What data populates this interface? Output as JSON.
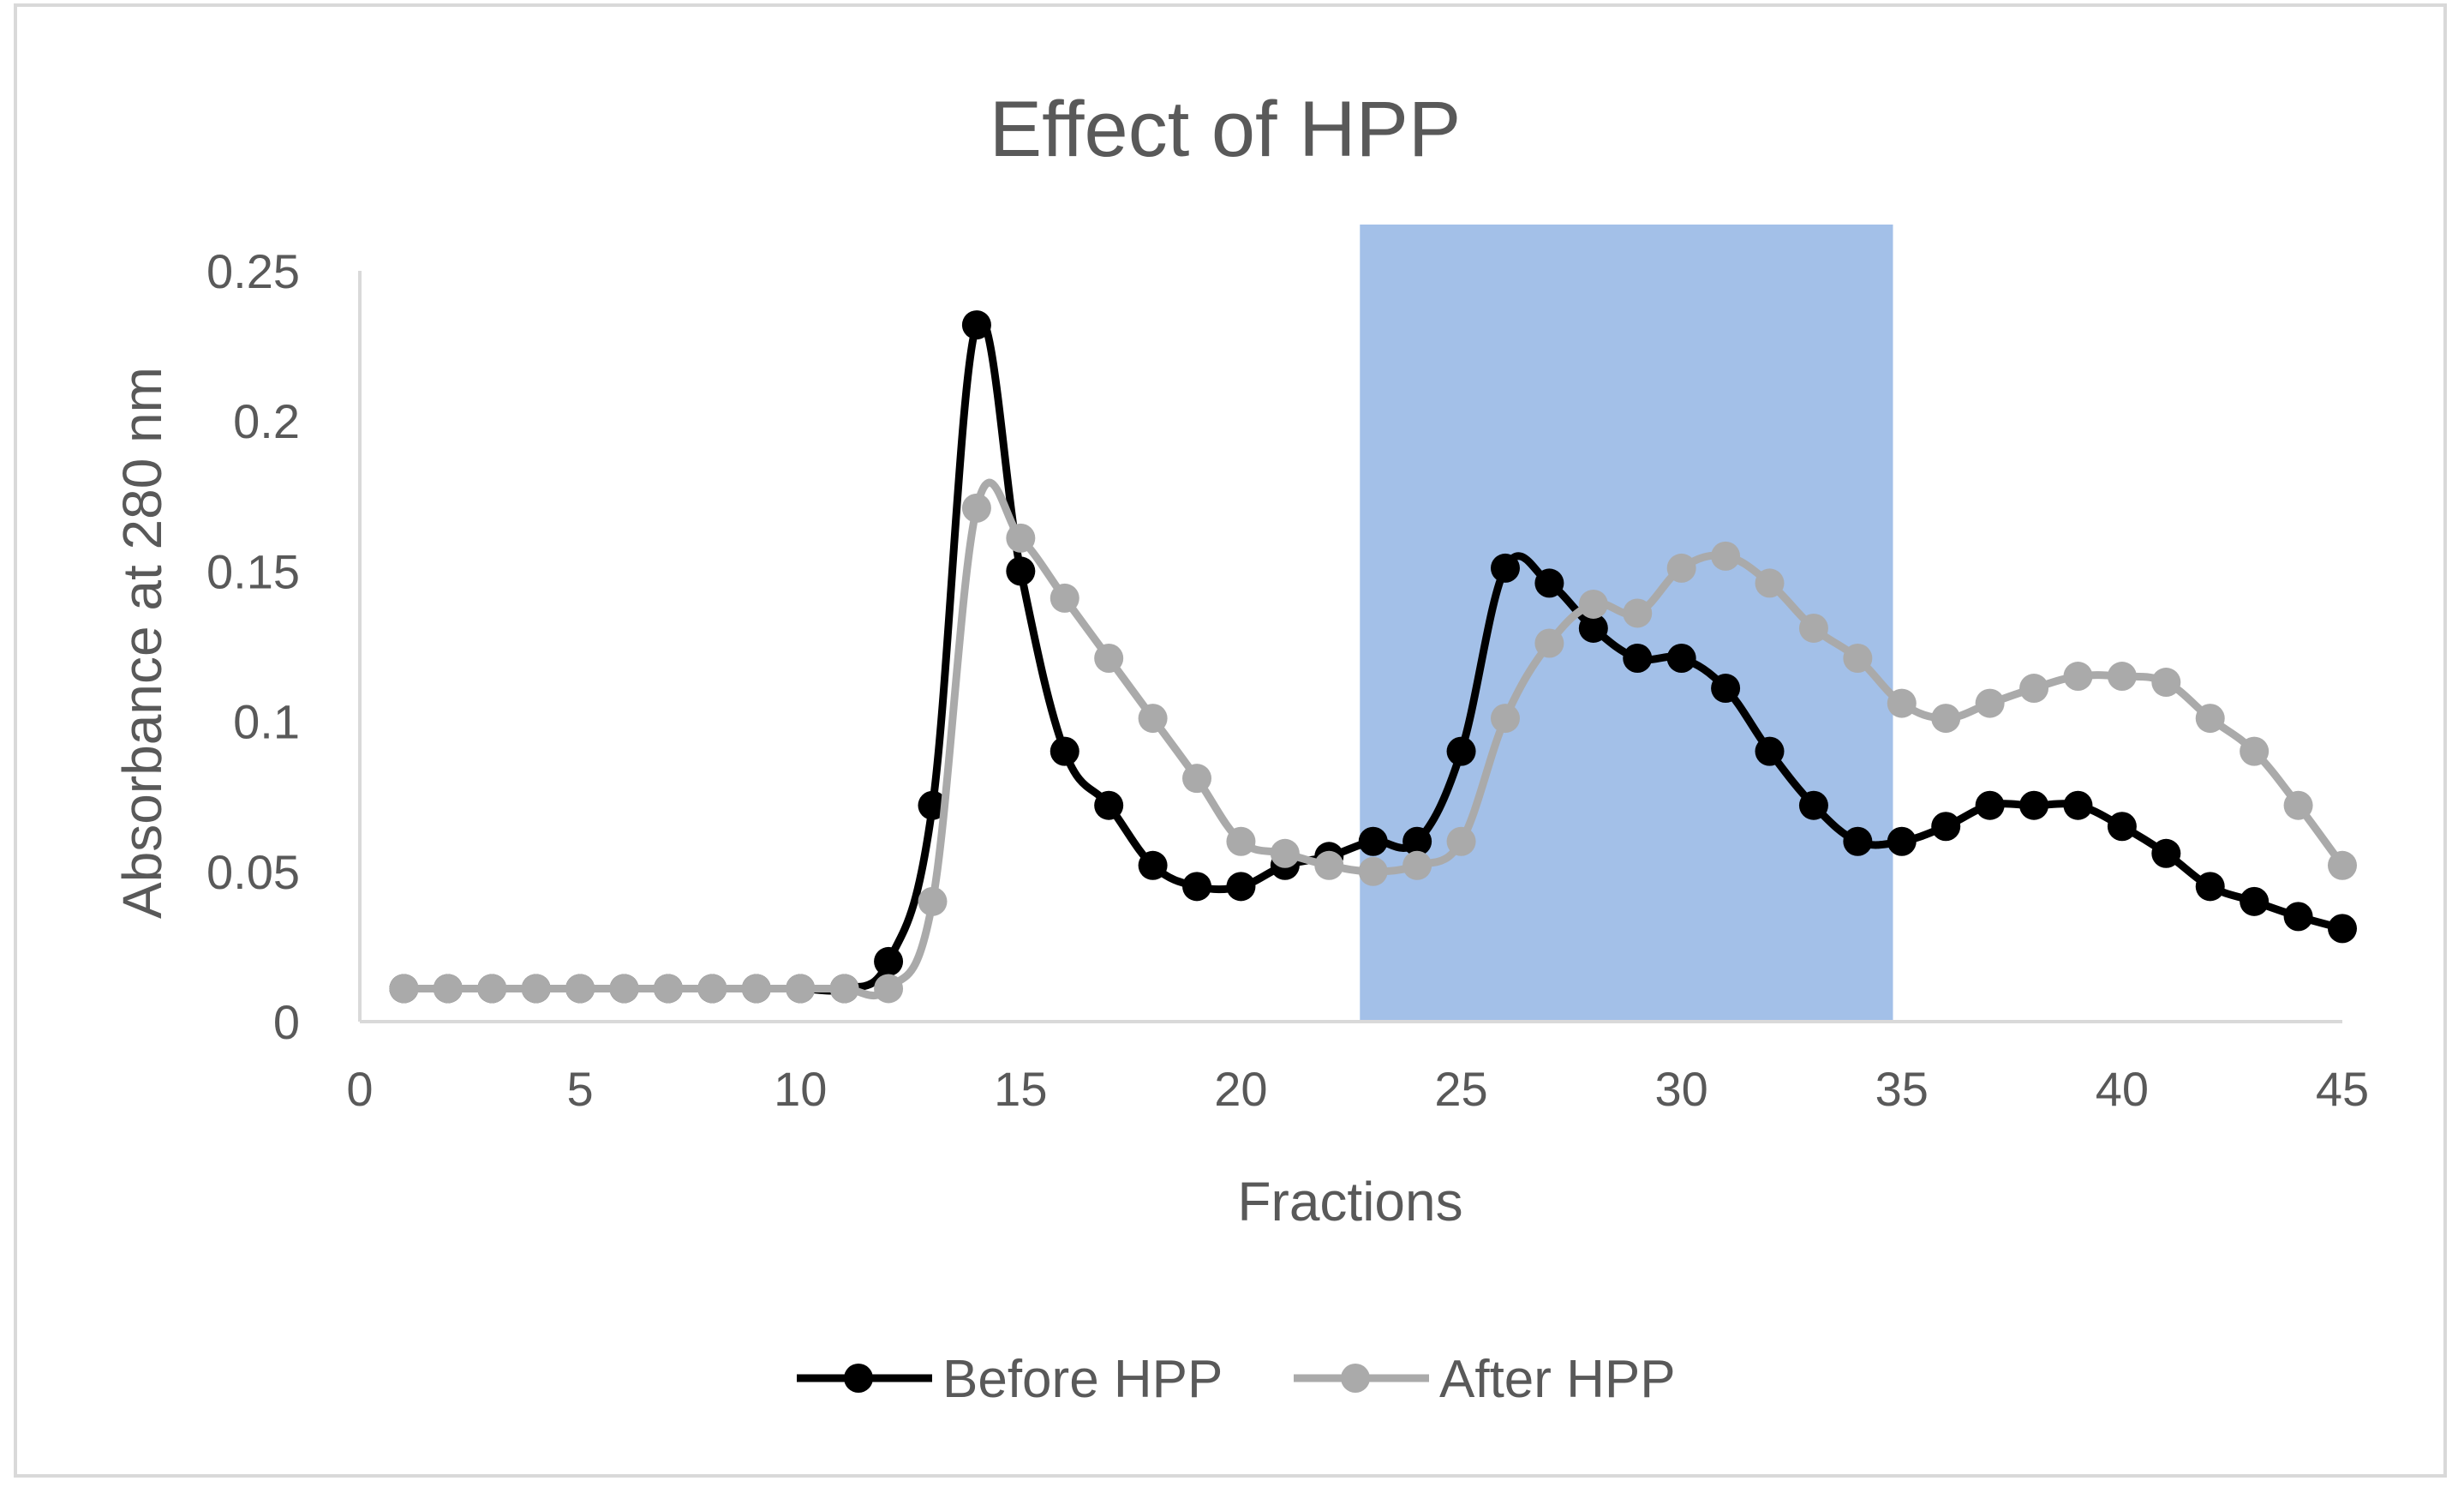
{
  "chart_data": {
    "type": "line",
    "title": "Effect of HPP",
    "xlabel": "Fractions",
    "ylabel": "Absorbance at 280 nm",
    "xlim": [
      0,
      45
    ],
    "ylim": [
      0,
      0.25
    ],
    "x_ticks": [
      "0",
      "5",
      "10",
      "15",
      "20",
      "25",
      "30",
      "35",
      "40",
      "45"
    ],
    "y_ticks": [
      "0",
      "0.05",
      "0.1",
      "0.15",
      "0.2",
      "0.25"
    ],
    "grid": false,
    "legend_position": "bottom-center",
    "highlight_region": {
      "x_start": 22.7,
      "x_end": 34.8,
      "color": "#8fb2e3"
    },
    "x": [
      1,
      2,
      3,
      4,
      5,
      6,
      7,
      8,
      9,
      10,
      11,
      12,
      13,
      14,
      15,
      16,
      17,
      18,
      19,
      20,
      21,
      22,
      23,
      24,
      25,
      26,
      27,
      28,
      29,
      30,
      31,
      32,
      33,
      34,
      35,
      36,
      37,
      38,
      39,
      40,
      41,
      42,
      43,
      44,
      45
    ],
    "series": [
      {
        "name": "Before HPP",
        "color": "#000000",
        "values": [
          0.011,
          0.011,
          0.011,
          0.011,
          0.011,
          0.011,
          0.011,
          0.011,
          0.011,
          0.011,
          0.011,
          0.02,
          0.072,
          0.232,
          0.15,
          0.09,
          0.072,
          0.052,
          0.045,
          0.045,
          0.052,
          0.055,
          0.06,
          0.06,
          0.09,
          0.151,
          0.146,
          0.131,
          0.121,
          0.121,
          0.111,
          0.09,
          0.072,
          0.06,
          0.06,
          0.065,
          0.072,
          0.072,
          0.072,
          0.065,
          0.056,
          0.045,
          0.04,
          0.035,
          0.031
        ]
      },
      {
        "name": "After HPP",
        "color": "#aaaaaa",
        "values": [
          0.011,
          0.011,
          0.011,
          0.011,
          0.011,
          0.011,
          0.011,
          0.011,
          0.011,
          0.011,
          0.011,
          0.011,
          0.04,
          0.171,
          0.161,
          0.141,
          0.121,
          0.101,
          0.081,
          0.06,
          0.056,
          0.052,
          0.05,
          0.052,
          0.06,
          0.101,
          0.126,
          0.139,
          0.136,
          0.151,
          0.155,
          0.146,
          0.131,
          0.121,
          0.106,
          0.101,
          0.106,
          0.111,
          0.115,
          0.115,
          0.113,
          0.101,
          0.09,
          0.072,
          0.052
        ]
      }
    ]
  }
}
